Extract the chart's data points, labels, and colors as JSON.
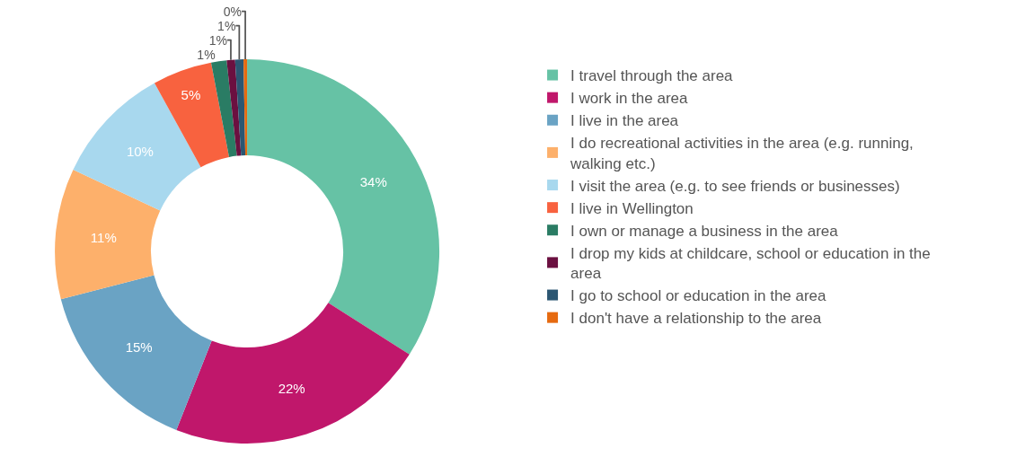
{
  "chart_data": {
    "type": "donut",
    "categories": [
      "I travel through the area",
      "I work in the area",
      "I live in the area",
      "I do recreational activities in the area (e.g. running, walking etc.)",
      "I visit the area (e.g. to see friends or businesses)",
      "I live in Wellington",
      "I own or manage a business in the area",
      "I drop my kids at childcare, school or education in the area",
      "I go to school or education in the area",
      "I don't have a relationship to the area"
    ],
    "values": [
      34,
      22,
      15,
      11,
      10,
      5,
      1.3,
      0.7,
      0.7,
      0.3
    ],
    "value_labels": [
      "34%",
      "22%",
      "15%",
      "11%",
      "10%",
      "5%",
      "1%",
      "1%",
      "1%",
      "0%"
    ],
    "colors": [
      "#66c2a5",
      "#c0176b",
      "#6aa3c4",
      "#fdb06b",
      "#a8d8ee",
      "#f8623f",
      "#2a7c64",
      "#6b1040",
      "#2b5672",
      "#e66a10"
    ],
    "legend": "right"
  }
}
